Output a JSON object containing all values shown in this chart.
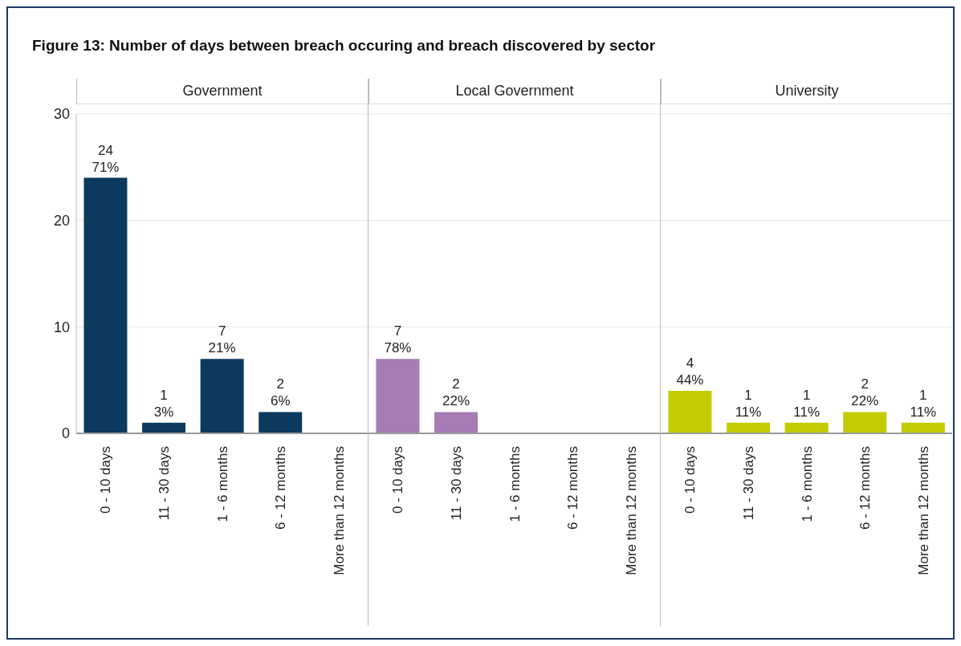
{
  "chart_data": [
    {
      "type": "bar",
      "title": "Figure 13: Number of days between breach occuring and breach discovered by sector",
      "subtitle": "Government",
      "categories": [
        "0 - 10 days",
        "11 - 30 days",
        "1 - 6 months",
        "6 - 12 months",
        "More than 12 months"
      ],
      "values": [
        24,
        1,
        7,
        2,
        0
      ],
      "value_labels": [
        "24\n71%",
        "1\n3%",
        "7\n21%",
        "2\n6%",
        null
      ],
      "color": "#0b3a5e",
      "ylim": [
        0,
        30
      ],
      "yticks": [
        0,
        10,
        20,
        30
      ],
      "grid": "y"
    },
    {
      "type": "bar",
      "subtitle": "Local Government",
      "categories": [
        "0 - 10 days",
        "11 - 30 days",
        "1 - 6 months",
        "6 - 12 months",
        "More than 12 months"
      ],
      "values": [
        7,
        2,
        0,
        0,
        0
      ],
      "value_labels": [
        "7\n78%",
        "2\n22%",
        null,
        null,
        null
      ],
      "color": "#a77bb4",
      "ylim": [
        0,
        30
      ],
      "yticks": [
        0,
        10,
        20,
        30
      ],
      "grid": "y",
      "tick_labels": "x"
    },
    {
      "type": "bar",
      "subtitle": "University",
      "categories": [
        "0 - 10 days",
        "11 - 30 days",
        "1 - 6 months",
        "6 - 12 months",
        "More than 12 months"
      ],
      "values": [
        4,
        1,
        1,
        2,
        1
      ],
      "value_labels": [
        "4\n44%",
        "1\n11%",
        "1\n11%",
        "2\n22%",
        "1\n11%"
      ],
      "color": "#c3cc00",
      "ylim": [
        0,
        30
      ],
      "yticks": [
        0,
        10,
        20,
        30
      ],
      "grid": "y",
      "tick_labels": "x"
    }
  ]
}
